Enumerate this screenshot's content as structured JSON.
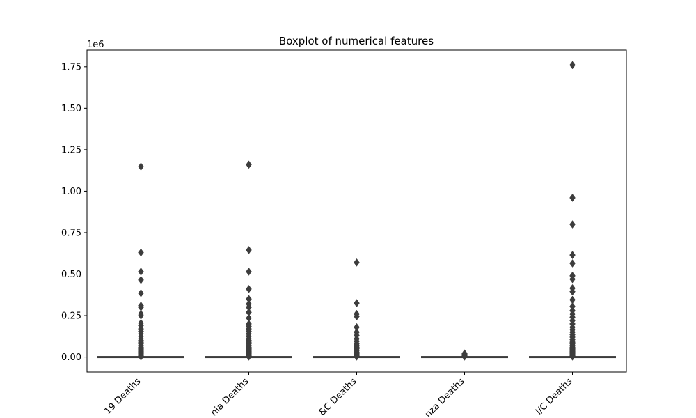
{
  "chart_data": {
    "type": "box",
    "title": "Boxplot of numerical features",
    "offset_label": "1e6",
    "categories": [
      "19 Deaths",
      "nia Deaths",
      "&C Deaths",
      "nza Deaths",
      "I/C Deaths"
    ],
    "yticks": [
      0.0,
      0.25,
      0.5,
      0.75,
      1.0,
      1.25,
      1.5,
      1.75
    ],
    "ytick_labels": [
      "0.00",
      "0.25",
      "0.50",
      "0.75",
      "1.00",
      "1.25",
      "1.50",
      "1.75"
    ],
    "ylim": [
      -0.09,
      1.85
    ],
    "scale_note": "values in millions (offset 1e6)",
    "box_color": "#3d3d3d",
    "series": [
      {
        "median": 0.0,
        "q1": 0.0,
        "q3": 0.0,
        "whisker_low": 0.0,
        "whisker_high": 0.002,
        "outliers": [
          1.148,
          0.63,
          0.515,
          0.465,
          0.385,
          0.31,
          0.3,
          0.26,
          0.25,
          0.205,
          0.19,
          0.17,
          0.155,
          0.14,
          0.125,
          0.11,
          0.1,
          0.09,
          0.08,
          0.07,
          0.06,
          0.05,
          0.045,
          0.04,
          0.035,
          0.03,
          0.025,
          0.02,
          0.015,
          0.01,
          0.006,
          0.003
        ]
      },
      {
        "median": 0.0,
        "q1": 0.0,
        "q3": 0.0,
        "whisker_low": 0.0,
        "whisker_high": 0.002,
        "outliers": [
          1.16,
          0.645,
          0.515,
          0.41,
          0.35,
          0.32,
          0.3,
          0.27,
          0.235,
          0.2,
          0.185,
          0.17,
          0.155,
          0.14,
          0.125,
          0.11,
          0.1,
          0.09,
          0.08,
          0.07,
          0.06,
          0.05,
          0.045,
          0.04,
          0.035,
          0.03,
          0.025,
          0.02,
          0.015,
          0.01,
          0.006,
          0.003
        ]
      },
      {
        "median": 0.0,
        "q1": 0.0,
        "q3": 0.0,
        "whisker_low": 0.0,
        "whisker_high": 0.002,
        "outliers": [
          0.57,
          0.325,
          0.26,
          0.245,
          0.18,
          0.15,
          0.13,
          0.11,
          0.095,
          0.08,
          0.07,
          0.06,
          0.05,
          0.04,
          0.03,
          0.025,
          0.02,
          0.015,
          0.01,
          0.006,
          0.003
        ]
      },
      {
        "median": 0.0,
        "q1": 0.0,
        "q3": 0.0,
        "whisker_low": 0.0,
        "whisker_high": 0.001,
        "outliers": [
          0.022,
          0.016,
          0.012,
          0.008,
          0.005,
          0.003
        ]
      },
      {
        "median": 0.0,
        "q1": 0.0,
        "q3": 0.0,
        "whisker_low": 0.0,
        "whisker_high": 0.002,
        "outliers": [
          1.76,
          0.96,
          0.8,
          0.615,
          0.565,
          0.49,
          0.47,
          0.415,
          0.395,
          0.345,
          0.305,
          0.28,
          0.26,
          0.24,
          0.22,
          0.2,
          0.18,
          0.165,
          0.15,
          0.135,
          0.12,
          0.105,
          0.09,
          0.08,
          0.07,
          0.06,
          0.05,
          0.045,
          0.04,
          0.035,
          0.03,
          0.025,
          0.02,
          0.015,
          0.01,
          0.006,
          0.003
        ]
      }
    ]
  }
}
